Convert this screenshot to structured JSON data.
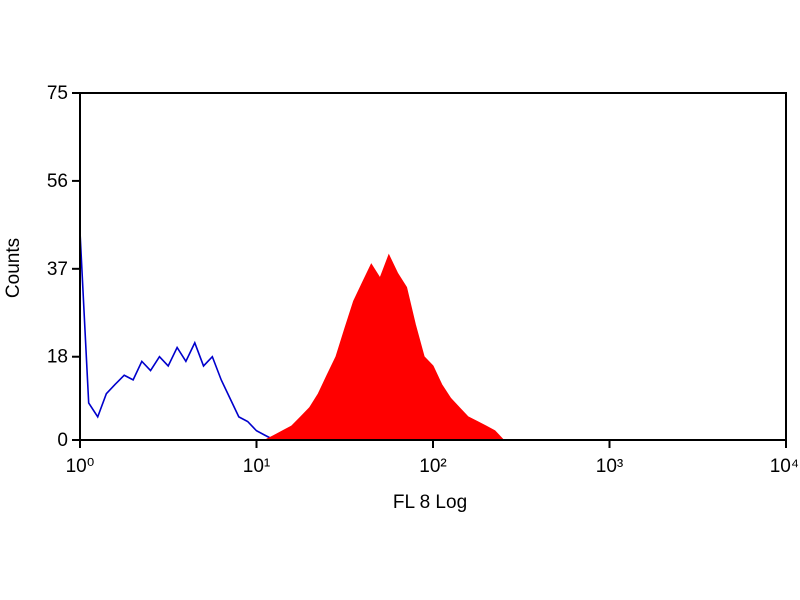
{
  "chart_data": {
    "type": "histogram",
    "xlabel": "FL 8 Log",
    "ylabel": "Counts",
    "xscale": "log",
    "xlim": [
      1,
      10000
    ],
    "xticks": [
      {
        "value": 1,
        "label": "10⁰"
      },
      {
        "value": 10,
        "label": "10¹"
      },
      {
        "value": 100,
        "label": "10²"
      },
      {
        "value": 1000,
        "label": "10³"
      },
      {
        "value": 10000,
        "label": "10⁴"
      }
    ],
    "ylim": [
      0,
      75
    ],
    "yticks": [
      0,
      18,
      37,
      56,
      75
    ],
    "x": [
      1,
      1.12,
      1.26,
      1.41,
      1.58,
      1.78,
      2.0,
      2.24,
      2.51,
      2.82,
      3.16,
      3.55,
      3.98,
      4.47,
      5.01,
      5.62,
      6.31,
      7.08,
      7.94,
      8.91,
      10,
      11.2,
      12.6,
      14.1,
      15.8,
      17.8,
      20,
      22.4,
      25.1,
      28.2,
      31.6,
      35.5,
      39.8,
      44.7,
      50.1,
      56.2,
      63.1,
      70.8,
      79.4,
      89.1,
      100,
      112,
      126,
      141,
      158,
      178,
      200,
      224,
      251,
      282
    ],
    "series": [
      {
        "color": "#0000cc",
        "fill": false,
        "values": [
          45,
          8,
          5,
          10,
          12,
          14,
          13,
          17,
          15,
          18,
          16,
          20,
          17,
          21,
          16,
          18,
          13,
          9,
          5,
          4,
          2,
          1,
          0,
          null,
          null,
          null,
          null,
          null,
          null,
          null,
          null,
          null,
          null,
          null,
          null,
          null,
          null,
          null,
          null,
          null,
          null,
          null,
          null,
          null,
          null,
          null,
          null,
          null,
          null,
          null
        ]
      },
      {
        "color": "#ff0000",
        "fill": true,
        "values": [
          null,
          null,
          null,
          null,
          null,
          null,
          null,
          null,
          null,
          null,
          null,
          null,
          null,
          null,
          null,
          null,
          null,
          null,
          null,
          null,
          null,
          0,
          1,
          2,
          3,
          5,
          7,
          10,
          14,
          18,
          24,
          30,
          34,
          38,
          35,
          40,
          36,
          33,
          25,
          18,
          16,
          12,
          9,
          7,
          5,
          4,
          3,
          2,
          0,
          0
        ]
      }
    ]
  }
}
